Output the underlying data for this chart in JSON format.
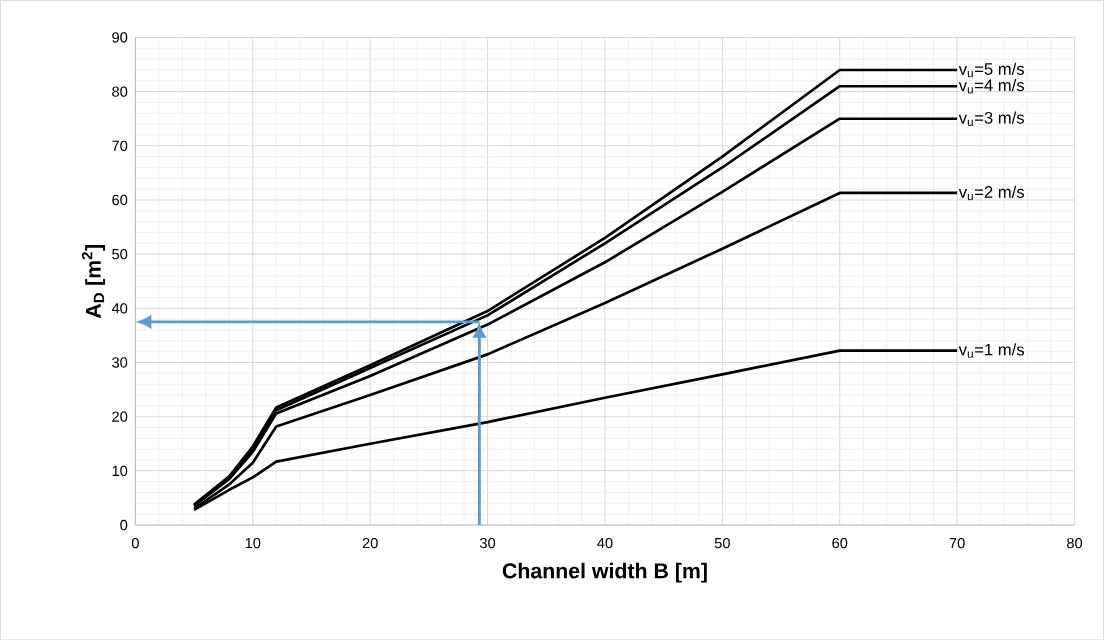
{
  "chart_data": {
    "type": "line",
    "xlabel": "Channel width B [m]",
    "ylabel": "A$_{D}$ [m$^{2}$]",
    "xlim": [
      0,
      80
    ],
    "ylim": [
      0,
      90
    ],
    "xticks": [
      0,
      10,
      20,
      30,
      40,
      50,
      60,
      70,
      80
    ],
    "yticks": [
      0,
      10,
      20,
      30,
      40,
      50,
      60,
      70,
      80,
      90
    ],
    "grid": true,
    "marker": "none",
    "line_style": "solid",
    "series": [
      {
        "name": "v$_{u}$=5 m/s",
        "color": "#000000",
        "x": [
          5,
          8,
          10,
          12,
          20,
          30,
          40,
          50,
          60,
          70
        ],
        "values": [
          3.8,
          9,
          14.5,
          21.7,
          29.5,
          39.5,
          53,
          68,
          84,
          84
        ]
      },
      {
        "name": "v$_{u}$=4 m/s",
        "color": "#000000",
        "x": [
          5,
          8,
          10,
          12,
          20,
          30,
          40,
          50,
          60,
          70
        ],
        "values": [
          3.6,
          8.8,
          14,
          21.2,
          29,
          38.7,
          52,
          66,
          81,
          81
        ]
      },
      {
        "name": "v$_{u}$=3 m/s",
        "color": "#000000",
        "x": [
          5,
          8,
          10,
          12,
          20,
          30,
          40,
          50,
          60,
          70
        ],
        "values": [
          3.5,
          8.5,
          13.5,
          20.6,
          27.5,
          37,
          48.5,
          61.5,
          75,
          75
        ]
      },
      {
        "name": "v$_{u}$=2 m/s",
        "color": "#000000",
        "x": [
          5,
          8,
          10,
          12,
          20,
          30,
          40,
          50,
          60,
          70
        ],
        "values": [
          3,
          7.5,
          11.5,
          18.2,
          24,
          31.5,
          41,
          51,
          61.3,
          61.3
        ]
      },
      {
        "name": "v$_{u}$=1 m/s",
        "color": "#000000",
        "x": [
          5,
          8,
          10,
          12,
          20,
          30,
          40,
          50,
          60,
          70
        ],
        "values": [
          2.8,
          6.5,
          8.8,
          11.7,
          15,
          19,
          23.5,
          27.8,
          32.2,
          32.2
        ]
      }
    ]
  }
}
